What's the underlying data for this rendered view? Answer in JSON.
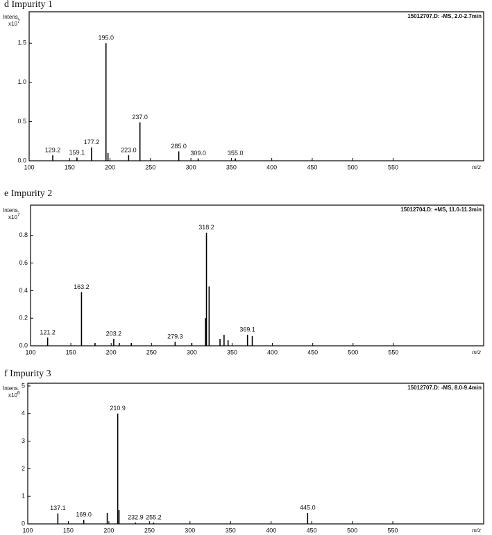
{
  "chart_data": [
    {
      "type": "spectrum",
      "title": "d  Impurity 1",
      "annotation": "15012707.D: -MS, 2.0-2.7min",
      "y_label": "Intens.",
      "y_unit": "x10",
      "y_exponent": "7",
      "x_label": "m/z",
      "color": "#000000",
      "x": [
        129.2,
        159.1,
        177.2,
        195.0,
        197.5,
        223.0,
        237.0,
        285.0,
        309.0,
        355.0
      ],
      "values": [
        0.07,
        0.04,
        0.17,
        1.5,
        0.1,
        0.07,
        0.49,
        0.12,
        0.03,
        0.03
      ],
      "peak_labels": [
        "129.2",
        "159.1",
        "177.2",
        "195.0",
        null,
        "223.0",
        "237.0",
        "285.0",
        "309.0",
        "355.0"
      ],
      "xlim": [
        100,
        662
      ],
      "xticks": [
        100,
        150,
        200,
        250,
        300,
        350,
        400,
        450,
        500,
        550
      ],
      "ylim": [
        0,
        1.9
      ],
      "yticks": [
        {
          "value": 0,
          "label": "0.0"
        },
        0.5,
        {
          "value": 1,
          "label": "1.0"
        },
        1.5
      ]
    },
    {
      "type": "spectrum",
      "title": "e  Impurity 2",
      "annotation": "15012704.D: +MS, 11.0-11.3min",
      "y_label": "Intens.",
      "y_unit": "x10",
      "y_exponent": "7",
      "x_label": "m/z",
      "color": "#000000",
      "x": [
        121.2,
        163.2,
        180,
        203.2,
        210,
        225,
        279.3,
        300,
        317,
        318.2,
        321.5,
        335,
        340,
        345,
        369.1,
        375
      ],
      "values": [
        0.06,
        0.39,
        0.02,
        0.05,
        0.02,
        0.02,
        0.03,
        0.02,
        0.2,
        0.82,
        0.43,
        0.05,
        0.08,
        0.04,
        0.08,
        0.07
      ],
      "peak_labels": [
        "121.2",
        "163.2",
        null,
        "203.2",
        null,
        null,
        "279.3",
        null,
        null,
        "318.2",
        null,
        null,
        null,
        null,
        "369.1",
        null
      ],
      "xlim": [
        100,
        662
      ],
      "xticks": [
        100,
        150,
        200,
        250,
        300,
        350,
        400,
        450,
        500,
        550
      ],
      "ylim": [
        0,
        1.02
      ],
      "yticks": [
        {
          "value": 0,
          "label": "0.0"
        },
        0.2,
        0.4,
        0.6,
        0.8
      ]
    },
    {
      "type": "spectrum",
      "title": "f  Impurity 3",
      "annotation": "15012707.D: -MS, 8.0-9.4min",
      "y_label": "Intens.",
      "y_unit": "x10",
      "y_exponent": "6",
      "x_label": "m/z",
      "color": "#000000",
      "x": [
        137.1,
        169.0,
        198,
        210.9,
        212.5,
        232.9,
        255.2,
        445.0
      ],
      "values": [
        0.38,
        0.15,
        0.4,
        4.0,
        0.5,
        0.05,
        0.05,
        0.4
      ],
      "peak_labels": [
        "137.1",
        "169.0",
        null,
        "210.9",
        null,
        "232.9",
        "255.2",
        "445.0"
      ],
      "xlim": [
        100,
        662
      ],
      "xticks": [
        100,
        150,
        200,
        250,
        300,
        350,
        400,
        450,
        500,
        550
      ],
      "ylim": [
        0,
        5.1
      ],
      "yticks": [
        0,
        1,
        2,
        3,
        4,
        5
      ]
    }
  ]
}
